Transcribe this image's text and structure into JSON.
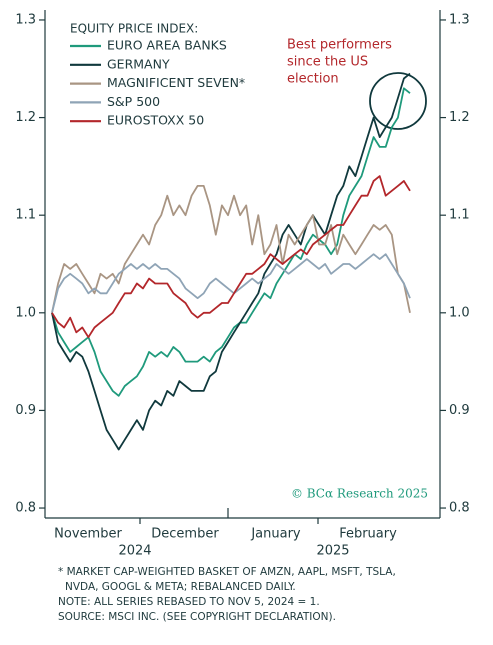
{
  "chart_data": {
    "type": "line",
    "legend_title": "EQUITY PRICE INDEX:",
    "annotation": [
      "Best performers",
      "since the US",
      "election"
    ],
    "watermark": "© BCα Research 2025",
    "month_labels": [
      "November",
      "December",
      "January",
      "February"
    ],
    "year_labels": [
      "2024",
      "2025"
    ],
    "footnotes": [
      "* MARKET CAP-WEIGHTED BASKET OF AMZN, AAPL, MSFT, TSLA,",
      "NVDA, GOOGL & META; REBALANCED DAILY.",
      "NOTE: ALL SERIES REBASED TO NOV 5, 2024 = 1.",
      "SOURCE: MSCI INC. (SEE COPYRIGHT DECLARATION)."
    ],
    "ylim": [
      0.79,
      1.31
    ],
    "yticks": [
      0.8,
      0.9,
      {
        "value": 1,
        "label": "1.0"
      },
      1.1,
      1.2,
      1.3
    ],
    "y2lim": [
      0.79,
      1.31
    ],
    "y2ticks": [
      0.8,
      0.9,
      {
        "value": 1,
        "label": "1.0"
      },
      1.1,
      1.2,
      1.3
    ],
    "series": [
      {
        "name": "EURO AREA BANKS",
        "color": "#1f9a7c",
        "values": [
          1.0,
          0.98,
          0.97,
          0.96,
          0.965,
          0.97,
          0.975,
          0.96,
          0.94,
          0.93,
          0.92,
          0.915,
          0.925,
          0.93,
          0.935,
          0.945,
          0.96,
          0.955,
          0.96,
          0.955,
          0.965,
          0.96,
          0.95,
          0.95,
          0.95,
          0.955,
          0.95,
          0.96,
          0.965,
          0.975,
          0.985,
          0.99,
          0.99,
          1.0,
          1.01,
          1.02,
          1.015,
          1.03,
          1.04,
          1.05,
          1.06,
          1.055,
          1.07,
          1.08,
          1.075,
          1.07,
          1.06,
          1.07,
          1.1,
          1.12,
          1.13,
          1.14,
          1.16,
          1.18,
          1.17,
          1.17,
          1.19,
          1.2,
          1.23,
          1.225
        ]
      },
      {
        "name": "GERMANY",
        "color": "#10393d",
        "values": [
          1.0,
          0.97,
          0.96,
          0.95,
          0.96,
          0.955,
          0.94,
          0.92,
          0.9,
          0.88,
          0.87,
          0.86,
          0.87,
          0.88,
          0.89,
          0.88,
          0.9,
          0.91,
          0.905,
          0.92,
          0.915,
          0.93,
          0.925,
          0.92,
          0.92,
          0.92,
          0.935,
          0.94,
          0.96,
          0.97,
          0.98,
          0.99,
          1.0,
          1.01,
          1.02,
          1.04,
          1.05,
          1.06,
          1.08,
          1.09,
          1.08,
          1.07,
          1.09,
          1.1,
          1.09,
          1.08,
          1.1,
          1.12,
          1.13,
          1.15,
          1.14,
          1.16,
          1.18,
          1.2,
          1.18,
          1.19,
          1.2,
          1.22,
          1.24,
          1.245
        ]
      },
      {
        "name": "MAGNIFICENT SEVEN*",
        "color": "#a99583",
        "values": [
          1.0,
          1.03,
          1.05,
          1.045,
          1.05,
          1.04,
          1.03,
          1.02,
          1.04,
          1.035,
          1.04,
          1.03,
          1.05,
          1.06,
          1.07,
          1.08,
          1.07,
          1.09,
          1.1,
          1.12,
          1.1,
          1.11,
          1.1,
          1.12,
          1.13,
          1.13,
          1.11,
          1.08,
          1.11,
          1.1,
          1.12,
          1.1,
          1.11,
          1.07,
          1.1,
          1.06,
          1.07,
          1.09,
          1.05,
          1.08,
          1.07,
          1.08,
          1.09,
          1.1,
          1.07,
          1.07,
          1.09,
          1.06,
          1.08,
          1.07,
          1.06,
          1.07,
          1.08,
          1.09,
          1.085,
          1.09,
          1.08,
          1.04,
          1.03,
          1.0
        ]
      },
      {
        "name": "S&P 500",
        "color": "#8fa4b6",
        "values": [
          1.0,
          1.025,
          1.035,
          1.04,
          1.035,
          1.03,
          1.02,
          1.025,
          1.02,
          1.02,
          1.03,
          1.04,
          1.045,
          1.05,
          1.045,
          1.05,
          1.045,
          1.05,
          1.045,
          1.045,
          1.04,
          1.035,
          1.025,
          1.02,
          1.015,
          1.02,
          1.03,
          1.035,
          1.03,
          1.025,
          1.02,
          1.025,
          1.03,
          1.035,
          1.03,
          1.035,
          1.04,
          1.05,
          1.045,
          1.04,
          1.045,
          1.05,
          1.055,
          1.05,
          1.045,
          1.05,
          1.04,
          1.045,
          1.05,
          1.05,
          1.045,
          1.05,
          1.055,
          1.06,
          1.055,
          1.06,
          1.05,
          1.04,
          1.03,
          1.015
        ]
      },
      {
        "name": "EUROSTOXX 50",
        "color": "#b3272b",
        "values": [
          1.0,
          0.99,
          0.985,
          0.995,
          0.98,
          0.985,
          0.975,
          0.985,
          0.99,
          0.995,
          1.0,
          1.01,
          1.02,
          1.02,
          1.03,
          1.025,
          1.035,
          1.03,
          1.03,
          1.03,
          1.02,
          1.015,
          1.01,
          1.0,
          0.995,
          1.0,
          1.0,
          1.005,
          1.01,
          1.01,
          1.02,
          1.03,
          1.04,
          1.04,
          1.045,
          1.05,
          1.06,
          1.055,
          1.05,
          1.055,
          1.06,
          1.065,
          1.06,
          1.07,
          1.075,
          1.08,
          1.085,
          1.09,
          1.09,
          1.1,
          1.11,
          1.12,
          1.12,
          1.135,
          1.14,
          1.12,
          1.125,
          1.13,
          1.135,
          1.125
        ]
      }
    ]
  }
}
